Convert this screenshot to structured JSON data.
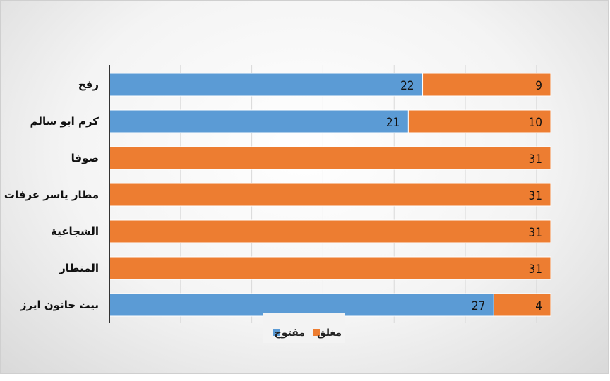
{
  "chart_data": {
    "type": "bar",
    "orientation": "horizontal",
    "stacked": true,
    "categories": [
      "رفح",
      "كرم ابو سالم",
      "صوفا",
      "مطار ياسر عرفات الدولي",
      "الشجاعية",
      "المنطار",
      "بيت حانون ايرز"
    ],
    "series": [
      {
        "name": "مفتوح",
        "values": [
          22,
          21,
          0,
          0,
          0,
          0,
          27
        ],
        "color": "#5B9BD5"
      },
      {
        "name": "مغلق",
        "values": [
          9,
          10,
          31,
          31,
          31,
          31,
          4
        ],
        "color": "#ED7D31"
      }
    ],
    "xlim": [
      0,
      31
    ],
    "grid": true,
    "legend_position": "bottom"
  }
}
